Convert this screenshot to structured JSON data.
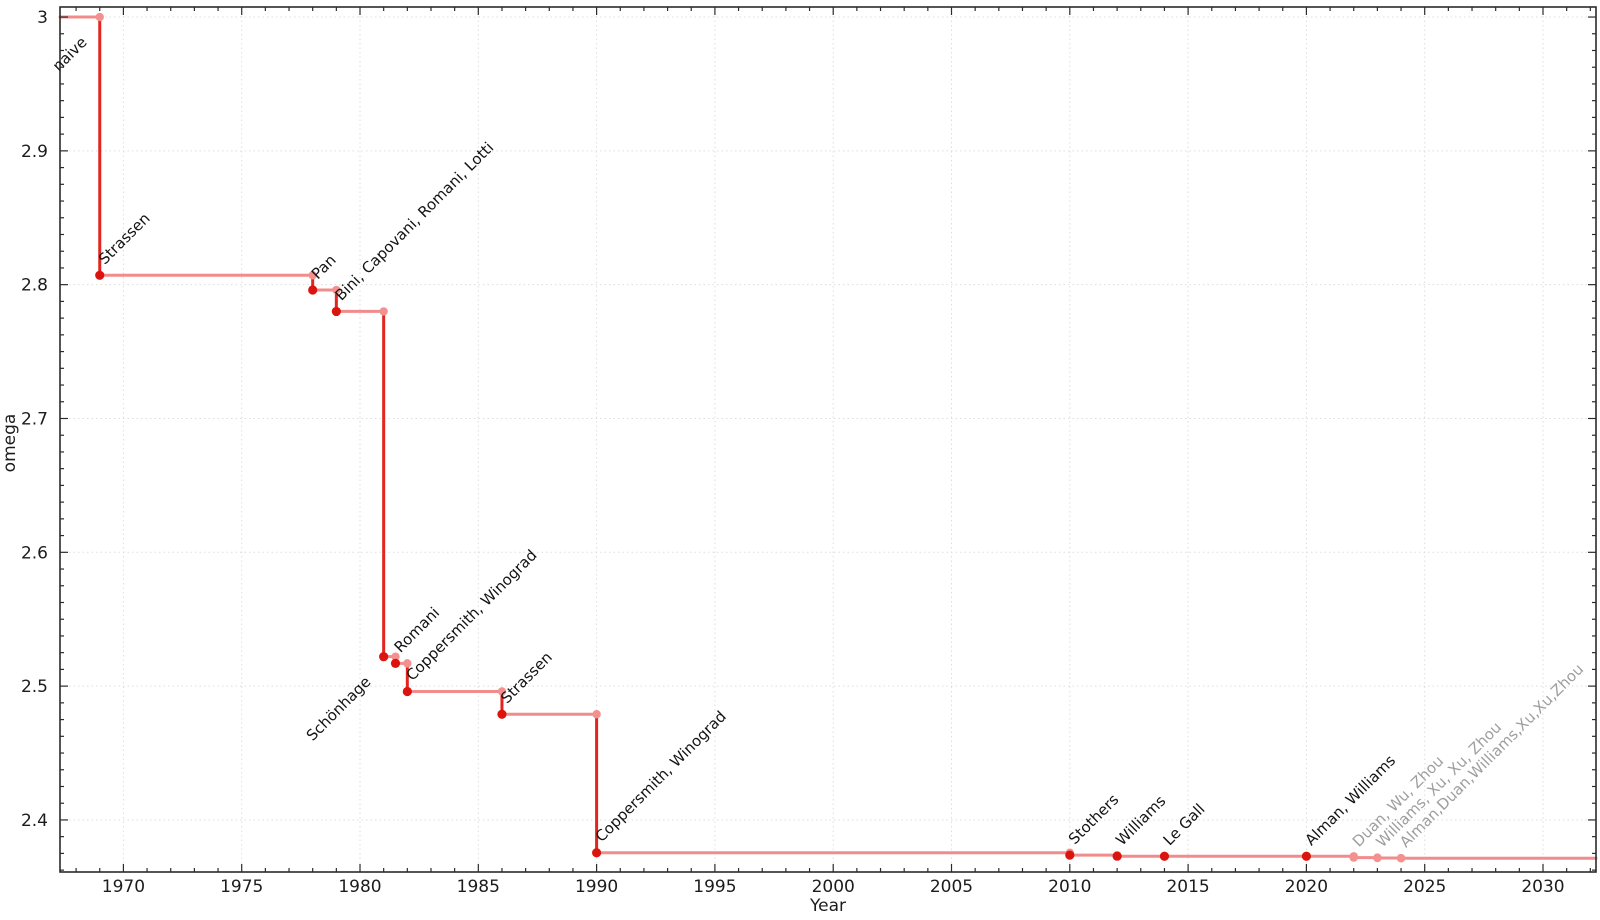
{
  "chart_data": {
    "type": "line",
    "line_style": "step-post",
    "title": "",
    "xlabel": "Year",
    "ylabel": "omega",
    "xlim": [
      1967.32,
      2032.24
    ],
    "ylim": [
      2.3611,
      3.0075
    ],
    "grid": true,
    "legend": "none",
    "x_major_ticks": [
      1970,
      1975,
      1980,
      1985,
      1990,
      1995,
      2000,
      2005,
      2010,
      2015,
      2020,
      2025,
      2030
    ],
    "x_minor_tick_step": 1,
    "y_major_ticks": [
      {
        "value": 3.0,
        "label": "3"
      },
      {
        "value": 2.9,
        "label": "2.9"
      },
      {
        "value": 2.8,
        "label": "2.8"
      },
      {
        "value": 2.7,
        "label": "2.7"
      },
      {
        "value": 2.6,
        "label": "2.6"
      },
      {
        "value": 2.5,
        "label": "2.5"
      },
      {
        "value": 2.4,
        "label": "2.4"
      }
    ],
    "y_minor_tick_step": 0.0125,
    "initial": {
      "label": "naive",
      "omega": 3.0,
      "label_placement": "below",
      "label_style": "normal"
    },
    "points": [
      {
        "year": 1969,
        "omega": 2.807,
        "label": "Strassen",
        "label_placement": "above",
        "label_style": "normal"
      },
      {
        "year": 1978,
        "omega": 2.796,
        "label": "Pan",
        "label_placement": "above",
        "label_style": "normal"
      },
      {
        "year": 1979,
        "omega": 2.78,
        "label": "Bini, Capovani, Romani, Lotti",
        "label_placement": "above",
        "label_style": "normal"
      },
      {
        "year": 1981,
        "omega": 2.522,
        "label": "Schönhage",
        "label_placement": "below",
        "label_style": "normal"
      },
      {
        "year": 1981.5,
        "omega": 2.517,
        "label": "Romani",
        "label_placement": "above",
        "label_style": "normal"
      },
      {
        "year": 1982,
        "omega": 2.496,
        "label": "Coppersmith, Winograd",
        "label_placement": "above",
        "label_style": "normal"
      },
      {
        "year": 1986,
        "omega": 2.479,
        "label": "Strassen",
        "label_placement": "above",
        "label_style": "normal"
      },
      {
        "year": 1990,
        "omega": 2.3755,
        "label": "Coppersmith, Winograd",
        "label_placement": "above",
        "label_style": "normal"
      },
      {
        "year": 2010,
        "omega": 2.3737,
        "label": "Stothers",
        "label_placement": "above",
        "label_style": "normal"
      },
      {
        "year": 2012,
        "omega": 2.3729,
        "label": "Williams",
        "label_placement": "above",
        "label_style": "normal"
      },
      {
        "year": 2014,
        "omega": 2.3728639,
        "label": "Le Gall",
        "label_placement": "above",
        "label_style": "normal"
      },
      {
        "year": 2020,
        "omega": 2.3728596,
        "label": "Alman, Williams",
        "label_placement": "above",
        "label_style": "normal"
      },
      {
        "year": 2022,
        "omega": 2.371866,
        "label": "Duan, Wu, Zhou",
        "label_placement": "above",
        "label_style": "faded"
      },
      {
        "year": 2023,
        "omega": 2.371552,
        "label": "Williams, Xu, Xu, Zhou",
        "label_placement": "above",
        "label_style": "faded"
      },
      {
        "year": 2024,
        "omega": 2.371339,
        "label": "Alman,Duan,Williams,Xu,Xu,Zhou",
        "label_placement": "above",
        "label_style": "faded"
      }
    ]
  },
  "colors": {
    "background": "#FFFFFF",
    "step_horizontal": "#F08C8C",
    "step_vertical": "#E3251F",
    "point_strong": "#DC140E",
    "point_faded": "#F4918F",
    "corner_dot": "#F4918F",
    "label_normal": "#141414",
    "label_faded": "#9E9E9E",
    "grid": "#DDDDDD",
    "frame": "#2B2B2B",
    "tick": "#2B2B2B",
    "tick_label": "#1C1C1C"
  }
}
